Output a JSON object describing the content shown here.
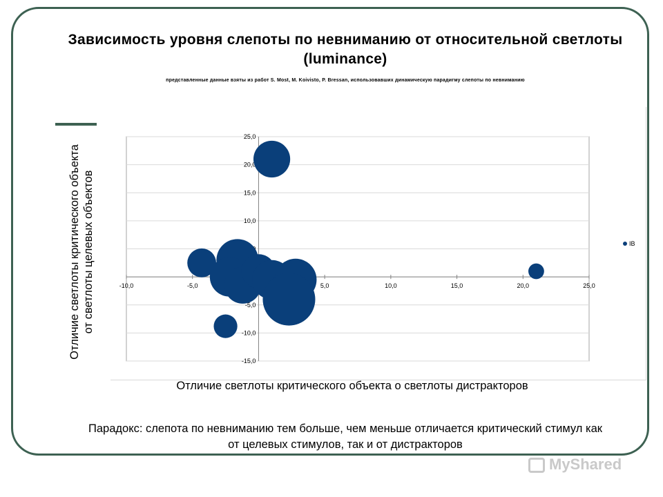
{
  "title": "Зависимость уровня слепоты по невниманию от относительной светлоты  (luminance)",
  "subtitle": "представленные  данные  взяты из работ  S. Most, M. Koivisto, P. Bressan, использовавших динамическую  парадигму слепоты по невниманию",
  "ylabel_line1": "Отличие светлоты критического объекта",
  "ylabel_line2": "от светлоты целевых  объектов",
  "xlabel": "Отличие светлоты критического объекта о светлоты дистракторов",
  "paradox": "Парадокс: слепота по невниманию тем больше, чем меньше отличается критический стимул как от целевых стимулов, так и от дистракторов",
  "watermark": "MyShared",
  "colors": {
    "bubble": "#0a3f7a",
    "frame": "#3d6152",
    "grid": "#d9d9d9"
  },
  "chart_data": {
    "type": "scatter",
    "xlim": [
      -10,
      25
    ],
    "ylim": [
      -15,
      25
    ],
    "x_ticks": [
      "-10,0",
      "-5,0",
      "0,0",
      "5,0",
      "10,0",
      "15,0",
      "20,0",
      "25,0"
    ],
    "y_ticks": [
      "25,0",
      "20,0",
      "15,0",
      "10,0",
      "5,0",
      "0,0",
      "-5,0",
      "-10,0",
      "-15,0"
    ],
    "grid": true,
    "legend": "right",
    "series": [
      {
        "name": "IB",
        "points": [
          {
            "x": 1.0,
            "y": 21.0,
            "size": 0.7
          },
          {
            "x": -4.3,
            "y": 2.5,
            "size": 0.55
          },
          {
            "x": -1.6,
            "y": 3.0,
            "size": 0.8
          },
          {
            "x": -2.2,
            "y": 0.0,
            "size": 0.75
          },
          {
            "x": -1.2,
            "y": -1.5,
            "size": 0.7
          },
          {
            "x": 0.0,
            "y": 1.0,
            "size": 0.65
          },
          {
            "x": 1.0,
            "y": -0.5,
            "size": 0.75
          },
          {
            "x": 2.8,
            "y": -0.5,
            "size": 0.8
          },
          {
            "x": 2.3,
            "y": -4.0,
            "size": 1.0
          },
          {
            "x": -2.5,
            "y": -8.8,
            "size": 0.45
          },
          {
            "x": 21.0,
            "y": 1.0,
            "size": 0.3
          }
        ]
      }
    ]
  }
}
